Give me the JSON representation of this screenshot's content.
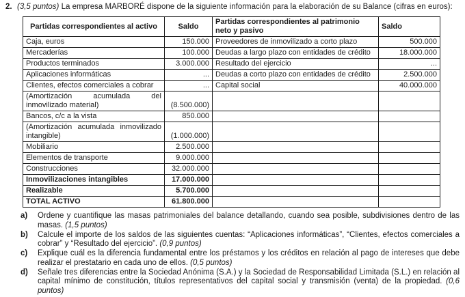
{
  "header": {
    "number": "2.",
    "points": "(3,5 puntos)",
    "intro": "La empresa MARBORÉ dispone de la siguiente información para la elaboración de su Balance (cifras en euros):"
  },
  "table": {
    "headers": [
      "Partidas correspondientes al activo",
      "Saldo",
      "Partidas correspondientes al patrimonio neto y pasivo",
      "Saldo"
    ],
    "rows": [
      {
        "activo": "Caja, euros",
        "saldo_activo": "150.000",
        "pasivo": "Proveedores de inmovilizado a corto plazo",
        "saldo_pasivo": "500.000"
      },
      {
        "activo": "Mercaderías",
        "saldo_activo": "100.000",
        "pasivo": "Deudas a largo plazo con entidades de crédito",
        "saldo_pasivo": "18.000.000"
      },
      {
        "activo": "Productos terminados",
        "saldo_activo": "3.000.000",
        "pasivo": "Resultado del ejercicio",
        "saldo_pasivo": "..."
      },
      {
        "activo": "Aplicaciones informáticas",
        "saldo_activo": "...",
        "pasivo": "Deudas a corto plazo con entidades de crédito",
        "saldo_pasivo": "2.500.000"
      },
      {
        "activo": "Clientes, efectos comerciales a cobrar",
        "saldo_activo": "...",
        "pasivo": "Capital social",
        "saldo_pasivo": "40.000.000"
      },
      {
        "activo": "(Amortización acumulada del inmovilizado material)",
        "saldo_activo": "(8.500.000)",
        "pasivo": "",
        "saldo_pasivo": ""
      },
      {
        "activo": "Bancos, c/c a la vista",
        "saldo_activo": "850.000",
        "pasivo": "",
        "saldo_pasivo": ""
      },
      {
        "activo": "(Amortización acumulada inmovilizado intangible)",
        "saldo_activo": "(1.000.000)",
        "pasivo": "",
        "saldo_pasivo": ""
      },
      {
        "activo": "Mobiliario",
        "saldo_activo": "2.500.000",
        "pasivo": "",
        "saldo_pasivo": ""
      },
      {
        "activo": "Elementos de transporte",
        "saldo_activo": "9.000.000",
        "pasivo": "",
        "saldo_pasivo": ""
      },
      {
        "activo": "Construcciones",
        "saldo_activo": "32.000.000",
        "pasivo": "",
        "saldo_pasivo": ""
      },
      {
        "activo": "Inmovilizaciones intangibles",
        "saldo_activo": "17.000.000",
        "pasivo": "",
        "saldo_pasivo": ""
      },
      {
        "activo": "Realizable",
        "saldo_activo": "5.700.000",
        "pasivo": "",
        "saldo_pasivo": ""
      },
      {
        "activo": "TOTAL ACTIVO",
        "saldo_activo": "61.800.000",
        "pasivo": "",
        "saldo_pasivo": ""
      }
    ]
  },
  "questions": [
    {
      "label": "a)",
      "text": "Ordene y cuantifique las masas patrimoniales del balance detallando, cuando sea posible, subdivisiones dentro de las masas.",
      "points": "(1,5 puntos)"
    },
    {
      "label": "b)",
      "text": "Calcule el importe de los saldos de las siguientes cuentas: “Aplicaciones informáticas”, “Clientes, efectos comerciales a cobrar” y “Resultado del ejercicio”.",
      "points": "(0,9 puntos)"
    },
    {
      "label": "c)",
      "text": "Explique cuál es la diferencia fundamental entre los préstamos y los créditos en relación al pago de intereses que debe realizar el prestatario en cada uno de ellos.",
      "points": "(0,5 puntos)"
    },
    {
      "label": "d)",
      "text": "Señale tres diferencias entre la Sociedad Anónima (S.A.) y la Sociedad de Responsabilidad Limitada (S.L.) en relación al capital mínimo de constitución, títulos representativos del capital social y transmisión (venta) de la propiedad.",
      "points": "(0,6 puntos)"
    }
  ]
}
